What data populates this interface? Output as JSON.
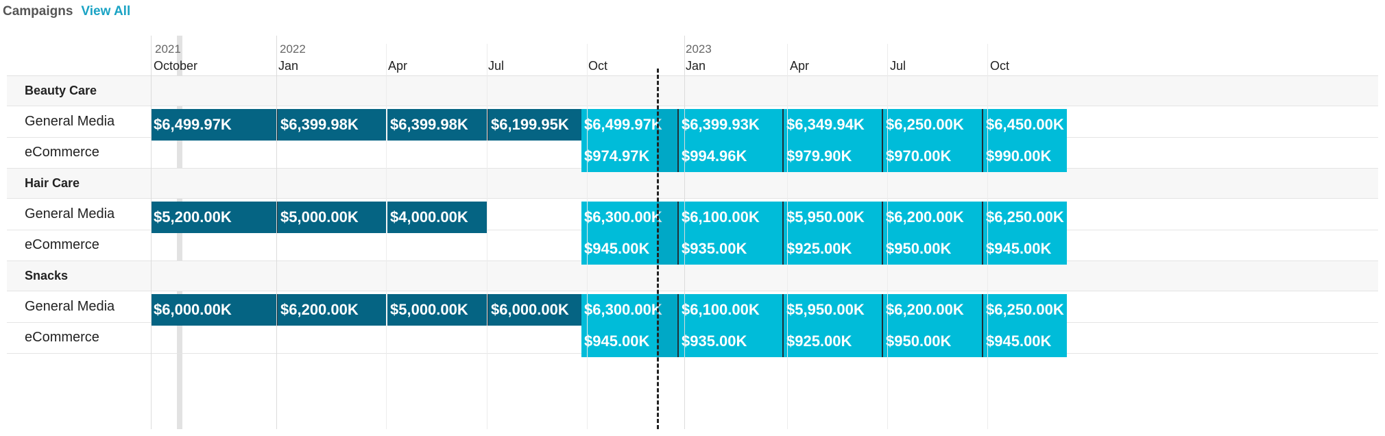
{
  "header": {
    "title": "Campaigns",
    "view_all": "View All"
  },
  "axis": {
    "years": [
      "2021",
      "2022",
      "2023"
    ],
    "months": [
      "October",
      "Jan",
      "Apr",
      "Jul",
      "Oct",
      "Jan",
      "Apr",
      "Jul",
      "Oct"
    ]
  },
  "groups": [
    {
      "name": "Beauty Care",
      "rows": [
        {
          "label": "General Media",
          "past": [
            "$6,499.97K",
            "$6,399.98K",
            "$6,399.98K",
            "$6,199.95K"
          ],
          "future": [
            "$6,499.97K",
            "$6,399.93K",
            "$6,349.94K",
            "$6,250.00K",
            "$6,450.00K"
          ]
        },
        {
          "label": "eCommerce",
          "past": [],
          "future": [
            "$974.97K",
            "$994.96K",
            "$979.90K",
            "$970.00K",
            "$990.00K"
          ]
        }
      ]
    },
    {
      "name": "Hair Care",
      "rows": [
        {
          "label": "General Media",
          "past": [
            "$5,200.00K",
            "$5,000.00K",
            "$4,000.00K"
          ],
          "future": [
            "$6,300.00K",
            "$6,100.00K",
            "$5,950.00K",
            "$6,200.00K",
            "$6,250.00K"
          ]
        },
        {
          "label": "eCommerce",
          "past": [],
          "future": [
            "$945.00K",
            "$935.00K",
            "$925.00K",
            "$950.00K",
            "$945.00K"
          ]
        }
      ]
    },
    {
      "name": "Snacks",
      "rows": [
        {
          "label": "General Media",
          "past": [
            "$6,000.00K",
            "$6,200.00K",
            "$5,000.00K",
            "$6,000.00K"
          ],
          "future": [
            "$6,300.00K",
            "$6,100.00K",
            "$5,950.00K",
            "$6,200.00K",
            "$6,250.00K"
          ]
        },
        {
          "label": "eCommerce",
          "past": [],
          "future": [
            "$945.00K",
            "$935.00K",
            "$925.00K",
            "$950.00K",
            "$945.00K"
          ]
        }
      ]
    }
  ],
  "colors": {
    "past": "#056483",
    "future": "#00bcd9",
    "link": "#1aa3c4"
  }
}
